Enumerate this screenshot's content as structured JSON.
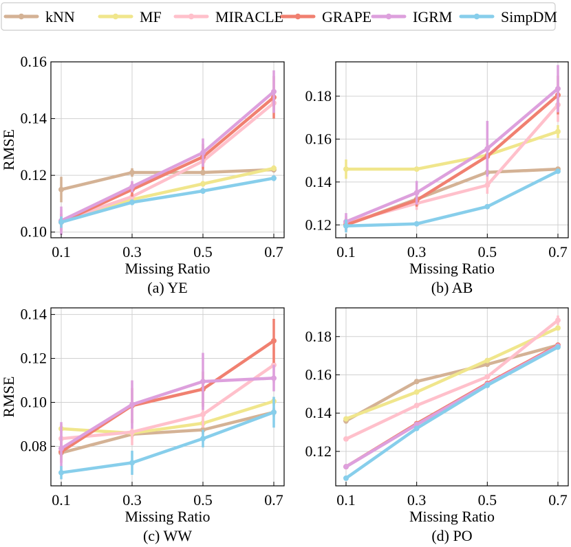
{
  "colors": {
    "kNN": "#d4b295",
    "MF": "#f0e68c",
    "MIRACLE": "#ffc0cb",
    "GRAPE": "#f08070",
    "IGRM": "#dda0dd",
    "SimpDM": "#87ceeb"
  },
  "legend": [
    "kNN",
    "MF",
    "MIRACLE",
    "GRAPE",
    "IGRM",
    "SimpDM"
  ],
  "chart_data": [
    {
      "type": "line",
      "title": "(a) YE",
      "xlabel": "Missing Ratio",
      "ylabel": "RMSE",
      "categories": [
        "0.1",
        "0.3",
        "0.5",
        "0.7"
      ],
      "ylim": [
        0.098,
        0.16
      ],
      "yticks": [
        0.1,
        0.12,
        0.14,
        0.16
      ],
      "ytick_labels": [
        "0.10",
        "0.12",
        "0.14",
        "0.16"
      ],
      "series": [
        {
          "name": "kNN",
          "values": [
            0.115,
            0.121,
            0.121,
            0.122
          ],
          "errors": [
            0.0045,
            0.0015,
            0.001,
            0.001
          ]
        },
        {
          "name": "MF",
          "values": [
            0.1035,
            0.1115,
            0.117,
            0.1225
          ],
          "errors": [
            0.002,
            0.001,
            0.001,
            0.001
          ]
        },
        {
          "name": "MIRACLE",
          "values": [
            0.104,
            0.1125,
            0.125,
            0.1455
          ],
          "errors": [
            0.004,
            0.0015,
            0.0025,
            0.0035
          ]
        },
        {
          "name": "GRAPE",
          "values": [
            0.1035,
            0.115,
            0.1265,
            0.1475
          ],
          "errors": [
            0.003,
            0.0025,
            0.0045,
            0.0075
          ]
        },
        {
          "name": "IGRM",
          "values": [
            0.104,
            0.116,
            0.128,
            0.1495
          ],
          "errors": [
            0.005,
            0.002,
            0.005,
            0.0075
          ]
        },
        {
          "name": "SimpDM",
          "values": [
            0.1035,
            0.1105,
            0.1145,
            0.119
          ],
          "errors": [
            0.002,
            0.001,
            0.001,
            0.001
          ]
        }
      ]
    },
    {
      "type": "line",
      "title": "(b) AB",
      "xlabel": "Missing Ratio",
      "ylabel": "",
      "categories": [
        "0.1",
        "0.3",
        "0.5",
        "0.7"
      ],
      "ylim": [
        0.114,
        0.196
      ],
      "yticks": [
        0.12,
        0.14,
        0.16,
        0.18
      ],
      "ytick_labels": [
        "0.12",
        "0.14",
        "0.16",
        "0.18"
      ],
      "series": [
        {
          "name": "kNN",
          "values": [
            0.12,
            0.132,
            0.1445,
            0.146
          ],
          "errors": [
            0.002,
            0.002,
            0.0015,
            0.001
          ]
        },
        {
          "name": "MF",
          "values": [
            0.146,
            0.146,
            0.1525,
            0.1635
          ],
          "errors": [
            0.0045,
            0.001,
            0.002,
            0.003
          ]
        },
        {
          "name": "MIRACLE",
          "values": [
            0.121,
            0.13,
            0.1385,
            0.176
          ],
          "errors": [
            0.003,
            0.003,
            0.004,
            0.008
          ]
        },
        {
          "name": "GRAPE",
          "values": [
            0.12,
            0.1315,
            0.152,
            0.1805
          ],
          "errors": [
            0.003,
            0.003,
            0.006,
            0.009
          ]
        },
        {
          "name": "IGRM",
          "values": [
            0.1215,
            0.135,
            0.1555,
            0.1835
          ],
          "errors": [
            0.004,
            0.0055,
            0.013,
            0.011
          ]
        },
        {
          "name": "SimpDM",
          "values": [
            0.1195,
            0.1205,
            0.1285,
            0.145
          ],
          "errors": [
            0.003,
            0.001,
            0.001,
            0.001
          ]
        }
      ]
    },
    {
      "type": "line",
      "title": "(c) WW",
      "xlabel": "Missing Ratio",
      "ylabel": "RMSE",
      "categories": [
        "0.1",
        "0.3",
        "0.5",
        "0.7"
      ],
      "ylim": [
        0.062,
        0.143
      ],
      "yticks": [
        0.08,
        0.1,
        0.12,
        0.14
      ],
      "ytick_labels": [
        "0.08",
        "0.10",
        "0.12",
        "0.14"
      ],
      "series": [
        {
          "name": "kNN",
          "values": [
            0.077,
            0.0855,
            0.0875,
            0.0955
          ],
          "errors": [
            0.002,
            0.002,
            0.002,
            0.002
          ]
        },
        {
          "name": "MF",
          "values": [
            0.088,
            0.086,
            0.0905,
            0.1005
          ],
          "errors": [
            0.002,
            0.002,
            0.002,
            0.002
          ]
        },
        {
          "name": "MIRACLE",
          "values": [
            0.0835,
            0.0865,
            0.0945,
            0.117
          ],
          "errors": [
            0.004,
            0.006,
            0.006,
            0.008
          ]
        },
        {
          "name": "GRAPE",
          "values": [
            0.0775,
            0.0985,
            0.106,
            0.128
          ],
          "errors": [
            0.005,
            0.008,
            0.008,
            0.01
          ]
        },
        {
          "name": "IGRM",
          "values": [
            0.079,
            0.099,
            0.1095,
            0.111
          ],
          "errors": [
            0.012,
            0.011,
            0.013,
            0.006
          ]
        },
        {
          "name": "SimpDM",
          "values": [
            0.068,
            0.0725,
            0.0835,
            0.0955
          ],
          "errors": [
            0.003,
            0.0055,
            0.004,
            0.007
          ]
        }
      ]
    },
    {
      "type": "line",
      "title": "(d) PO",
      "xlabel": "Missing Ratio",
      "ylabel": "",
      "categories": [
        "0.1",
        "0.3",
        "0.5",
        "0.7"
      ],
      "ylim": [
        0.102,
        0.195
      ],
      "yticks": [
        0.12,
        0.14,
        0.16,
        0.18
      ],
      "ytick_labels": [
        "0.12",
        "0.14",
        "0.16",
        "0.18"
      ],
      "series": [
        {
          "name": "kNN",
          "values": [
            0.136,
            0.1565,
            0.1655,
            0.1755
          ],
          "errors": [
            0.0015,
            0.001,
            0.001,
            0.001
          ]
        },
        {
          "name": "MF",
          "values": [
            0.137,
            0.151,
            0.1675,
            0.1845
          ],
          "errors": [
            0.001,
            0.001,
            0.001,
            0.001
          ]
        },
        {
          "name": "MIRACLE",
          "values": [
            0.1265,
            0.144,
            0.159,
            0.1885
          ],
          "errors": [
            0.001,
            0.001,
            0.001,
            0.0025
          ]
        },
        {
          "name": "GRAPE",
          "values": [
            0.112,
            0.1345,
            0.1555,
            0.1755
          ],
          "errors": [
            0.001,
            0.001,
            0.001,
            0.001
          ]
        },
        {
          "name": "IGRM",
          "values": [
            0.112,
            0.134,
            0.155,
            0.175
          ],
          "errors": [
            0.001,
            0.001,
            0.001,
            0.001
          ]
        },
        {
          "name": "SimpDM",
          "values": [
            0.106,
            0.132,
            0.1545,
            0.1745
          ],
          "errors": [
            0.001,
            0.001,
            0.001,
            0.001
          ]
        }
      ]
    }
  ]
}
